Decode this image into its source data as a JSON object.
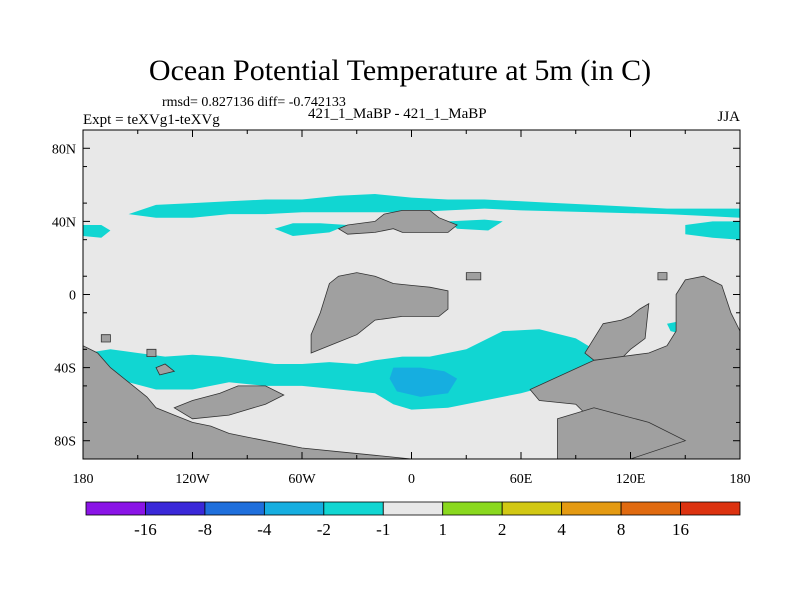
{
  "chart_data": {
    "type": "heatmap",
    "title": "Ocean Potential Temperature at 5m (in C)",
    "stats_text": "rmsd= 0.827136 diff= -0.742133",
    "left_label": "Expt = teXVg1-teXVg",
    "subtitle": "421_1_MaBP - 421_1_MaBP",
    "season": "JJA",
    "x_axis": {
      "range": [
        -180,
        180
      ],
      "ticks": [
        -180,
        -120,
        -60,
        0,
        60,
        120,
        180
      ],
      "tick_labels": [
        "180",
        "120W",
        "60W",
        "0",
        "60E",
        "120E",
        "180"
      ]
    },
    "y_axis": {
      "range": [
        -90,
        90
      ],
      "ticks": [
        80,
        40,
        0,
        -40,
        -80
      ],
      "tick_labels": [
        "80N",
        "40N",
        "0",
        "40S",
        "80S"
      ]
    },
    "colorbar": {
      "labels": [
        "-16",
        "-8",
        "-4",
        "-2",
        "-1",
        "1",
        "2",
        "4",
        "8",
        "16"
      ],
      "colors": [
        "#8a14e6",
        "#3a28d8",
        "#1f6fdc",
        "#16aee0",
        "#11d6d2",
        "#e8e8e8",
        "#8ad81e",
        "#d2c814",
        "#e49a12",
        "#e06a10",
        "#dc3210"
      ]
    },
    "colors": {
      "ocean_background": "#e8e8e8",
      "land": "#a0a0a0",
      "anomaly_minus1_to_minus2": "#11d6d2",
      "anomaly_minus2_to_minus4": "#16aee0"
    },
    "regions": [
      {
        "name": "northern-band",
        "level": "-1 to -2",
        "polygon": [
          [
            -140,
            49
          ],
          [
            -120,
            50
          ],
          [
            -100,
            51
          ],
          [
            -80,
            52
          ],
          [
            -60,
            52
          ],
          [
            -40,
            54
          ],
          [
            -20,
            55
          ],
          [
            0,
            53
          ],
          [
            20,
            52
          ],
          [
            40,
            52
          ],
          [
            60,
            51
          ],
          [
            80,
            50
          ],
          [
            100,
            49
          ],
          [
            140,
            47
          ],
          [
            180,
            47
          ],
          [
            180,
            42
          ],
          [
            160,
            43
          ],
          [
            140,
            44
          ],
          [
            100,
            45
          ],
          [
            60,
            46
          ],
          [
            40,
            47
          ],
          [
            20,
            46
          ],
          [
            0,
            45
          ],
          [
            -20,
            45
          ],
          [
            -40,
            45
          ],
          [
            -60,
            45
          ],
          [
            -80,
            44
          ],
          [
            -100,
            44
          ],
          [
            -120,
            42
          ],
          [
            -140,
            42
          ],
          [
            -155,
            44
          ]
        ]
      },
      {
        "name": "north-pacific-west-patch",
        "level": "-1 to -2",
        "polygon": [
          [
            -180,
            38
          ],
          [
            -170,
            38
          ],
          [
            -165,
            35
          ],
          [
            -170,
            31
          ],
          [
            -180,
            32
          ]
        ]
      },
      {
        "name": "atlantic-patch",
        "level": "-1 to -2",
        "polygon": [
          [
            -75,
            36
          ],
          [
            -65,
            39
          ],
          [
            -50,
            39
          ],
          [
            -35,
            38
          ],
          [
            -45,
            34
          ],
          [
            -65,
            32
          ]
        ]
      },
      {
        "name": "east-asia-patch",
        "level": "-1 to -2",
        "polygon": [
          [
            20,
            40
          ],
          [
            40,
            41
          ],
          [
            50,
            40
          ],
          [
            42,
            35
          ],
          [
            25,
            36
          ]
        ]
      },
      {
        "name": "pacific-east-patch",
        "level": "-1 to -2",
        "polygon": [
          [
            150,
            38
          ],
          [
            165,
            40
          ],
          [
            180,
            40
          ],
          [
            180,
            30
          ],
          [
            165,
            31
          ],
          [
            150,
            33
          ]
        ]
      },
      {
        "name": "southern-belt",
        "level": "-1 to -2",
        "polygon": [
          [
            -178,
            -32
          ],
          [
            -165,
            -30
          ],
          [
            -150,
            -32
          ],
          [
            -135,
            -34
          ],
          [
            -120,
            -33
          ],
          [
            -105,
            -34
          ],
          [
            -90,
            -36
          ],
          [
            -75,
            -38
          ],
          [
            -60,
            -38
          ],
          [
            -45,
            -37
          ],
          [
            -30,
            -38
          ],
          [
            -20,
            -36
          ],
          [
            -5,
            -34
          ],
          [
            10,
            -34
          ],
          [
            30,
            -30
          ],
          [
            50,
            -20
          ],
          [
            70,
            -19
          ],
          [
            90,
            -24
          ],
          [
            100,
            -30
          ],
          [
            105,
            -42
          ],
          [
            90,
            -46
          ],
          [
            75,
            -50
          ],
          [
            60,
            -54
          ],
          [
            40,
            -58
          ],
          [
            20,
            -62
          ],
          [
            0,
            -63
          ],
          [
            -10,
            -60
          ],
          [
            -20,
            -54
          ],
          [
            -40,
            -52
          ],
          [
            -60,
            -50
          ],
          [
            -80,
            -50
          ],
          [
            -100,
            -48
          ],
          [
            -120,
            -52
          ],
          [
            -140,
            -52
          ],
          [
            -155,
            -48
          ],
          [
            -170,
            -44
          ],
          [
            -178,
            -42
          ]
        ]
      },
      {
        "name": "south-atlantic-core",
        "level": "-2 to -4",
        "polygon": [
          [
            -10,
            -40
          ],
          [
            5,
            -40
          ],
          [
            18,
            -42
          ],
          [
            25,
            -46
          ],
          [
            20,
            -54
          ],
          [
            5,
            -56
          ],
          [
            -8,
            -53
          ],
          [
            -12,
            -46
          ]
        ]
      },
      {
        "name": "south-pacific-tail",
        "level": "-1 to -2",
        "polygon": [
          [
            140,
            -16
          ],
          [
            155,
            -13
          ],
          [
            160,
            -18
          ],
          [
            150,
            -22
          ],
          [
            142,
            -20
          ]
        ]
      },
      {
        "name": "pacific-east-lower",
        "level": "-1 to -2",
        "polygon": [
          [
            145,
            -30
          ],
          [
            155,
            -28
          ],
          [
            160,
            -35
          ],
          [
            150,
            -38
          ]
        ]
      }
    ],
    "land": [
      {
        "name": "land-europe-asia",
        "polygon": [
          [
            -40,
            36
          ],
          [
            -35,
            38
          ],
          [
            -20,
            40
          ],
          [
            -15,
            44
          ],
          [
            -5,
            46
          ],
          [
            10,
            46
          ],
          [
            15,
            42
          ],
          [
            25,
            38
          ],
          [
            20,
            34
          ],
          [
            -5,
            34
          ],
          [
            -10,
            36
          ],
          [
            -20,
            34
          ],
          [
            -35,
            33
          ]
        ]
      },
      {
        "name": "land-africa",
        "polygon": [
          [
            -45,
            6
          ],
          [
            -40,
            10
          ],
          [
            -30,
            12
          ],
          [
            -20,
            10
          ],
          [
            -10,
            6
          ],
          [
            0,
            5
          ],
          [
            10,
            4
          ],
          [
            20,
            2
          ],
          [
            20,
            -8
          ],
          [
            15,
            -12
          ],
          [
            -5,
            -12
          ],
          [
            -20,
            -14
          ],
          [
            -30,
            -22
          ],
          [
            -40,
            -26
          ],
          [
            -55,
            -32
          ],
          [
            -55,
            -22
          ],
          [
            -50,
            -10
          ]
        ]
      },
      {
        "name": "land-australia",
        "polygon": [
          [
            105,
            -16
          ],
          [
            115,
            -14
          ],
          [
            120,
            -12
          ],
          [
            125,
            -8
          ],
          [
            130,
            -5
          ],
          [
            128,
            -24
          ],
          [
            120,
            -30
          ],
          [
            115,
            -35
          ],
          [
            100,
            -36
          ],
          [
            95,
            -32
          ]
        ]
      },
      {
        "name": "land-east",
        "polygon": [
          [
            145,
            0
          ],
          [
            150,
            8
          ],
          [
            160,
            10
          ],
          [
            170,
            5
          ],
          [
            175,
            -10
          ],
          [
            180,
            -20
          ],
          [
            180,
            -90
          ],
          [
            120,
            -90
          ],
          [
            100,
            -70
          ],
          [
            90,
            -60
          ],
          [
            70,
            -58
          ],
          [
            65,
            -52
          ],
          [
            100,
            -36
          ],
          [
            130,
            -32
          ],
          [
            140,
            -28
          ],
          [
            145,
            -20
          ]
        ]
      },
      {
        "name": "land-west-south",
        "polygon": [
          [
            -180,
            -28
          ],
          [
            -172,
            -32
          ],
          [
            -165,
            -40
          ],
          [
            -155,
            -48
          ],
          [
            -145,
            -56
          ],
          [
            -140,
            -62
          ],
          [
            -130,
            -66
          ],
          [
            -120,
            -70
          ],
          [
            -110,
            -72
          ],
          [
            -100,
            -76
          ],
          [
            -90,
            -78
          ],
          [
            -80,
            -80
          ],
          [
            -60,
            -84
          ],
          [
            -40,
            -86
          ],
          [
            -20,
            -88
          ],
          [
            0,
            -90
          ],
          [
            -180,
            -90
          ]
        ]
      },
      {
        "name": "land-southwest-peninsula",
        "polygon": [
          [
            -130,
            -62
          ],
          [
            -120,
            -58
          ],
          [
            -105,
            -54
          ],
          [
            -95,
            -50
          ],
          [
            -80,
            -50
          ],
          [
            -70,
            -55
          ],
          [
            -80,
            -60
          ],
          [
            -100,
            -66
          ],
          [
            -120,
            -68
          ]
        ]
      },
      {
        "name": "land-south-center",
        "polygon": [
          [
            80,
            -68
          ],
          [
            100,
            -62
          ],
          [
            115,
            -66
          ],
          [
            130,
            -70
          ],
          [
            150,
            -80
          ],
          [
            120,
            -90
          ],
          [
            80,
            -90
          ]
        ]
      },
      {
        "name": "land-island-1",
        "polygon": [
          [
            -145,
            -30
          ],
          [
            -140,
            -30
          ],
          [
            -140,
            -34
          ],
          [
            -145,
            -34
          ]
        ]
      },
      {
        "name": "land-island-2",
        "polygon": [
          [
            -140,
            -40
          ],
          [
            -135,
            -38
          ],
          [
            -130,
            -42
          ],
          [
            -138,
            -44
          ]
        ]
      },
      {
        "name": "land-island-3",
        "polygon": [
          [
            30,
            12
          ],
          [
            38,
            12
          ],
          [
            38,
            8
          ],
          [
            30,
            8
          ]
        ]
      },
      {
        "name": "land-island-4",
        "polygon": [
          [
            135,
            12
          ],
          [
            140,
            12
          ],
          [
            140,
            8
          ],
          [
            135,
            8
          ]
        ]
      },
      {
        "name": "land-island-5",
        "polygon": [
          [
            -170,
            -22
          ],
          [
            -165,
            -22
          ],
          [
            -165,
            -26
          ],
          [
            -170,
            -26
          ]
        ]
      }
    ]
  }
}
